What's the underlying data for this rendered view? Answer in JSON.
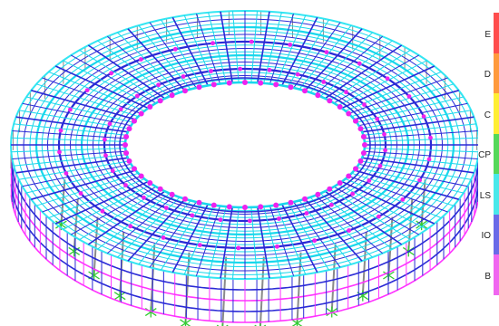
{
  "viewport": {
    "background": "#ffffff",
    "colors": {
      "rim": "#33e6f2",
      "outer_edge": "#ff33ff",
      "frame_blue": "#2a2ad6",
      "frame_cyan": "#19d8ec",
      "hinge_marker": "#ee22ee",
      "column": "#8a8a8a",
      "support": "#33cc33"
    }
  },
  "legend": {
    "levels": [
      {
        "label": "E",
        "color": "#ff4d4d"
      },
      {
        "label": "D",
        "color": "#ff9a3c"
      },
      {
        "label": "C",
        "color": "#ffee33"
      },
      {
        "label": "CP",
        "color": "#55d85a"
      },
      {
        "label": "LS",
        "color": "#48e8ea"
      },
      {
        "label": "IO",
        "color": "#6a6ae8"
      },
      {
        "label": "B",
        "color": "#f066f0"
      }
    ]
  }
}
